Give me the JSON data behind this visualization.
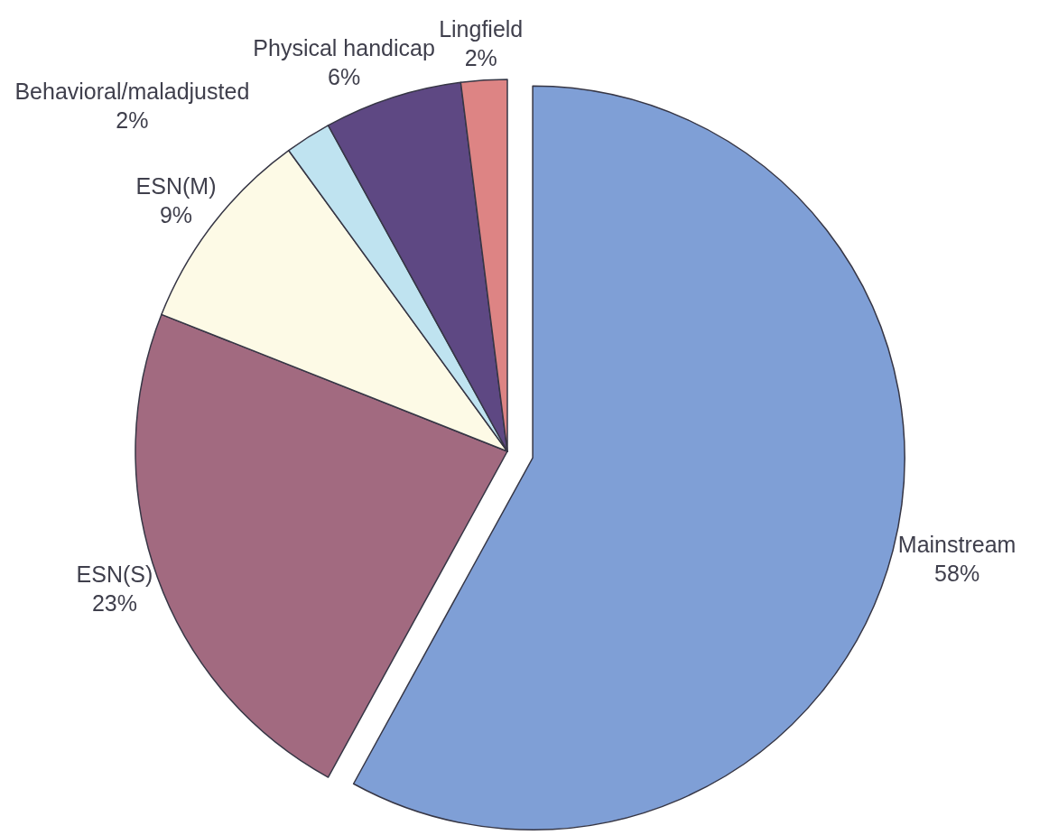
{
  "chart_data": {
    "type": "pie",
    "categories": [
      "Mainstream",
      "ESN(S)",
      "ESN(M)",
      "Behavioral/maladjusted",
      "Physical handicap",
      "Lingfield"
    ],
    "values": [
      58,
      23,
      9,
      2,
      6,
      2
    ],
    "colors": [
      "#7f9fd6",
      "#a26a80",
      "#fdfae6",
      "#bfe3f0",
      "#5e4883",
      "#dd8484"
    ],
    "value_labels": [
      "58%",
      "23%",
      "9%",
      "2%",
      "6%",
      "2%"
    ]
  }
}
